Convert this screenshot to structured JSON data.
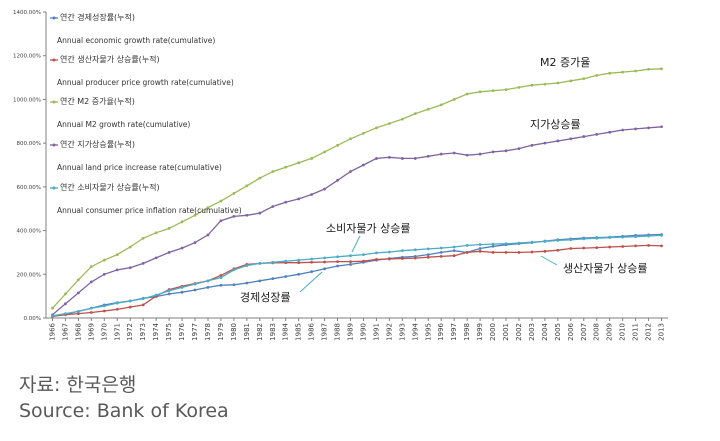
{
  "chart_data": {
    "type": "line",
    "x": [
      "1966",
      "1967",
      "1968",
      "1969",
      "1970",
      "1971",
      "1972",
      "1973",
      "1974",
      "1975",
      "1976",
      "1977",
      "1978",
      "1979",
      "1980",
      "1981",
      "1982",
      "1983",
      "1984",
      "1985",
      "1986",
      "1987",
      "1988",
      "1989",
      "1990",
      "1991",
      "1992",
      "1993",
      "1994",
      "1995",
      "1996",
      "1997",
      "1998",
      "1999",
      "2000",
      "2001",
      "2002",
      "2003",
      "2004",
      "2005",
      "2006",
      "2007",
      "2008",
      "2009",
      "2010",
      "2011",
      "2012",
      "2013"
    ],
    "yticks": [
      "0.00%",
      "200.00%",
      "400.00%",
      "600.00%",
      "800.00%",
      "1000.00%",
      "1200.00%",
      "1400.00%"
    ],
    "ylim": [
      0,
      1400
    ],
    "series": [
      {
        "name": "연간 경제성장률(누적)",
        "name_en": "Annual economic growth rate(cumulative)",
        "color": "#4f81bd",
        "values": [
          8,
          18,
          30,
          45,
          60,
          70,
          78,
          90,
          98,
          110,
          118,
          128,
          140,
          150,
          152,
          160,
          170,
          180,
          190,
          200,
          212,
          225,
          238,
          245,
          255,
          265,
          272,
          278,
          282,
          290,
          300,
          308,
          300,
          318,
          328,
          335,
          340,
          345,
          352,
          358,
          362,
          366,
          368,
          370,
          374,
          378,
          380,
          382
        ]
      },
      {
        "name": "연간 생산자물가 상승률(누적)",
        "name_en": "Annual producer price growth rate(cumulative)",
        "color": "#c0504d",
        "values": [
          8,
          15,
          20,
          25,
          32,
          40,
          50,
          60,
          100,
          130,
          145,
          158,
          170,
          195,
          225,
          245,
          250,
          252,
          253,
          253,
          255,
          256,
          258,
          258,
          260,
          268,
          270,
          272,
          274,
          278,
          282,
          285,
          300,
          305,
          300,
          300,
          300,
          302,
          305,
          310,
          318,
          320,
          322,
          325,
          327,
          330,
          332,
          330
        ]
      },
      {
        "name": "연간 M2 증가율(누적)",
        "name_en": "Annual M2 growth rate(cumulative)",
        "color": "#9bbb59",
        "values": [
          45,
          110,
          175,
          235,
          265,
          290,
          325,
          365,
          390,
          410,
          440,
          470,
          505,
          535,
          570,
          605,
          640,
          670,
          690,
          710,
          730,
          760,
          790,
          820,
          845,
          870,
          890,
          910,
          935,
          955,
          975,
          1000,
          1025,
          1035,
          1040,
          1045,
          1055,
          1065,
          1070,
          1075,
          1085,
          1095,
          1110,
          1120,
          1125,
          1130,
          1138,
          1140
        ]
      },
      {
        "name": "연간 지가상승률(누적)",
        "name_en": "Annual land price increase rate(cumulative)",
        "color": "#8064a2",
        "values": [
          15,
          65,
          115,
          165,
          200,
          220,
          230,
          250,
          275,
          300,
          320,
          345,
          380,
          445,
          465,
          470,
          480,
          510,
          530,
          545,
          565,
          590,
          630,
          670,
          700,
          730,
          735,
          730,
          730,
          740,
          750,
          755,
          745,
          750,
          760,
          765,
          775,
          790,
          800,
          810,
          820,
          830,
          840,
          850,
          860,
          865,
          870,
          875
        ]
      },
      {
        "name": "연간 소비자물가 상승률(누적)",
        "name_en": "Annual consumer price inflation rate(cumulative)",
        "color": "#4bacc6",
        "values": [
          10,
          20,
          30,
          45,
          55,
          68,
          78,
          88,
          105,
          125,
          140,
          155,
          170,
          185,
          220,
          240,
          250,
          255,
          260,
          265,
          270,
          275,
          280,
          285,
          290,
          298,
          302,
          308,
          312,
          316,
          320,
          325,
          332,
          336,
          338,
          340,
          343,
          347,
          350,
          355,
          358,
          362,
          365,
          368,
          370,
          372,
          375,
          378
        ]
      }
    ],
    "annotations": [
      "M2 증가율",
      "지가상승률",
      "소비자물가 상승률",
      "생산자물가 상승률",
      "경제성장률"
    ]
  },
  "source": {
    "ko": "자료: 한국은행",
    "en": "Source: Bank of Korea"
  }
}
